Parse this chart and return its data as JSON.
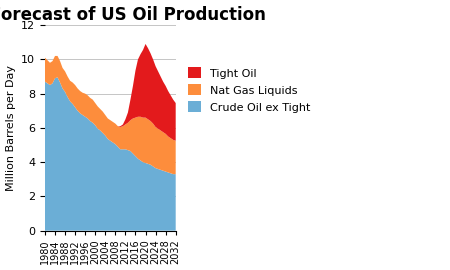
{
  "title": "IEA Forecast of US Oil Production",
  "ylabel": "Million Barrels per Day",
  "ylim": [
    0,
    12
  ],
  "yticks": [
    0,
    2,
    4,
    6,
    8,
    10,
    12
  ],
  "years": [
    1980,
    1981,
    1982,
    1983,
    1984,
    1985,
    1986,
    1987,
    1988,
    1989,
    1990,
    1991,
    1992,
    1993,
    1994,
    1995,
    1996,
    1997,
    1998,
    1999,
    2000,
    2001,
    2002,
    2003,
    2004,
    2005,
    2006,
    2007,
    2008,
    2009,
    2010,
    2011,
    2012,
    2013,
    2014,
    2015,
    2016,
    2017,
    2018,
    2019,
    2020,
    2021,
    2022,
    2023,
    2024,
    2025,
    2026,
    2027,
    2028,
    2029,
    2030,
    2031,
    2032
  ],
  "crude_oil": [
    8.7,
    8.6,
    8.5,
    8.6,
    8.9,
    8.95,
    8.65,
    8.3,
    8.1,
    7.8,
    7.55,
    7.4,
    7.2,
    7.0,
    6.85,
    6.75,
    6.65,
    6.55,
    6.4,
    6.3,
    6.15,
    5.95,
    5.85,
    5.7,
    5.55,
    5.35,
    5.25,
    5.15,
    5.05,
    4.9,
    4.75,
    4.75,
    4.75,
    4.7,
    4.65,
    4.5,
    4.35,
    4.2,
    4.1,
    4.0,
    3.95,
    3.9,
    3.85,
    3.75,
    3.65,
    3.6,
    3.55,
    3.5,
    3.45,
    3.4,
    3.35,
    3.3,
    3.3
  ],
  "nat_gas": [
    1.4,
    1.35,
    1.3,
    1.3,
    1.3,
    1.25,
    1.25,
    1.2,
    1.2,
    1.2,
    1.2,
    1.25,
    1.3,
    1.3,
    1.3,
    1.3,
    1.35,
    1.35,
    1.35,
    1.35,
    1.3,
    1.3,
    1.25,
    1.25,
    1.2,
    1.2,
    1.2,
    1.2,
    1.2,
    1.2,
    1.3,
    1.35,
    1.45,
    1.6,
    1.8,
    2.05,
    2.25,
    2.45,
    2.55,
    2.6,
    2.65,
    2.6,
    2.55,
    2.5,
    2.4,
    2.35,
    2.3,
    2.25,
    2.2,
    2.1,
    2.05,
    2.0,
    1.95
  ],
  "tight_oil": [
    0.0,
    0.0,
    0.0,
    0.0,
    0.0,
    0.0,
    0.0,
    0.0,
    0.0,
    0.0,
    0.0,
    0.0,
    0.0,
    0.0,
    0.0,
    0.0,
    0.0,
    0.0,
    0.0,
    0.0,
    0.0,
    0.0,
    0.0,
    0.0,
    0.0,
    0.0,
    0.0,
    0.0,
    0.0,
    0.0,
    0.05,
    0.1,
    0.3,
    0.6,
    1.2,
    1.9,
    2.75,
    3.35,
    3.65,
    3.95,
    4.3,
    4.15,
    3.95,
    3.75,
    3.55,
    3.35,
    3.15,
    2.95,
    2.8,
    2.65,
    2.5,
    2.35,
    2.2
  ],
  "crude_color": "#6baed6",
  "nat_gas_color": "#fd8d3c",
  "tight_oil_color": "#e31a1c",
  "xtick_years": [
    1980,
    1984,
    1988,
    1992,
    1996,
    2000,
    2004,
    2008,
    2012,
    2016,
    2020,
    2024,
    2028,
    2032
  ],
  "bg_color": "#ffffff",
  "plot_bg_color": "#ffffff",
  "title_fontsize": 12,
  "axis_fontsize": 8,
  "legend_fontsize": 8,
  "xlim": [
    1980,
    2032
  ]
}
